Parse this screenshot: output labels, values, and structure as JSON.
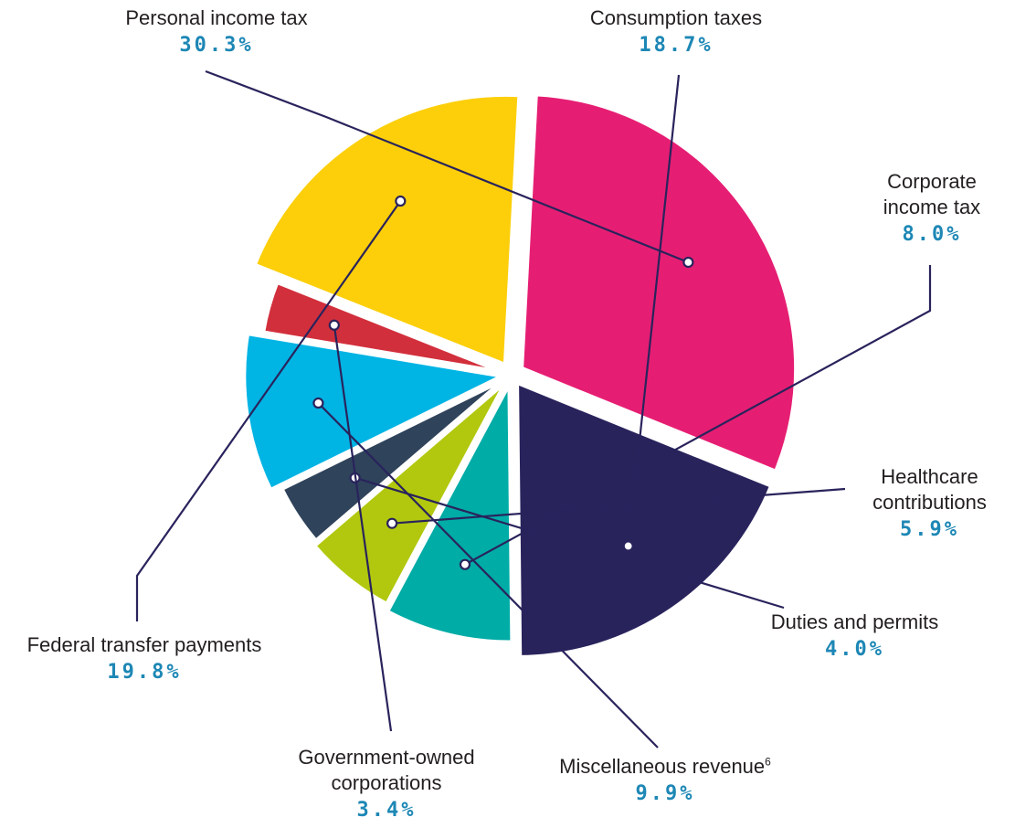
{
  "chart_data": {
    "type": "pie",
    "slices": [
      {
        "label": "Personal income tax",
        "value": 30.3,
        "value_label": "30.3%",
        "color": "#e61e73"
      },
      {
        "label": "Consumption taxes",
        "value": 18.7,
        "value_label": "18.7%",
        "color": "#29235c"
      },
      {
        "label": "Corporate income tax",
        "value": 8.0,
        "value_label": "8.0%",
        "color": "#00aca6"
      },
      {
        "label": "Healthcare contributions",
        "value": 5.9,
        "value_label": "5.9%",
        "color": "#b1c80e"
      },
      {
        "label": "Duties and permits",
        "value": 4.0,
        "value_label": "4.0%",
        "color": "#2f435b"
      },
      {
        "label": "Miscellaneous revenue",
        "footnote": "6",
        "value": 9.9,
        "value_label": "9.9%",
        "color": "#00b4e4"
      },
      {
        "label": "Government-owned corporations",
        "value": 3.4,
        "value_label": "3.4%",
        "color": "#d22f3c"
      },
      {
        "label": "Federal transfer payments",
        "value": 19.8,
        "value_label": "19.8%",
        "color": "#fccf0a"
      }
    ]
  },
  "labels": {
    "personal_a": "Personal income tax",
    "consumption_a": "Consumption taxes",
    "corporate_a": "Corporate",
    "corporate_b": "income tax",
    "healthcare_a": "Healthcare",
    "healthcare_b": "contributions",
    "duties_a": "Duties and permits",
    "misc_a": "Miscellaneous revenue",
    "misc_sup": "6",
    "govt_a": "Government-owned",
    "govt_b": "corporations",
    "federal_a": "Federal transfer payments"
  },
  "colors": {
    "leader": "#29235c",
    "percent": "#1d87b5"
  }
}
